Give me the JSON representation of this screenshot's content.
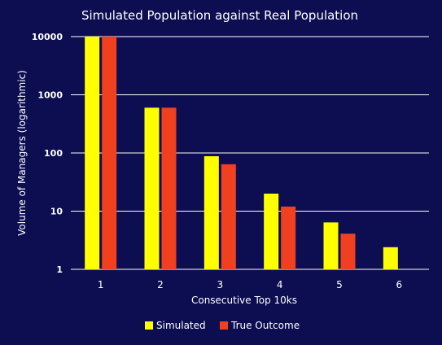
{
  "chart_data": {
    "type": "bar",
    "title": "Simulated Population against Real Population",
    "xlabel": "Consecutive Top 10ks",
    "ylabel": "Volume of Managers (logarithmic)",
    "y_scale": "log",
    "ylim": [
      1,
      10000
    ],
    "y_ticks": [
      "1",
      "10",
      "100",
      "1000",
      "10000"
    ],
    "categories": [
      "1",
      "2",
      "3",
      "4",
      "5",
      "6"
    ],
    "series": [
      {
        "name": "Simulated",
        "color": "#ffff00",
        "values": [
          10000,
          600,
          88,
          20,
          6.4,
          2.4
        ]
      },
      {
        "name": "True Outcome",
        "color": "#f04020",
        "values": [
          10000,
          600,
          64,
          12,
          4.1,
          null
        ]
      }
    ],
    "grid": true,
    "legend_position": "bottom"
  },
  "colors": {
    "background": "#0d0d52",
    "text": "#ffffff",
    "grid": "#ffffff"
  }
}
